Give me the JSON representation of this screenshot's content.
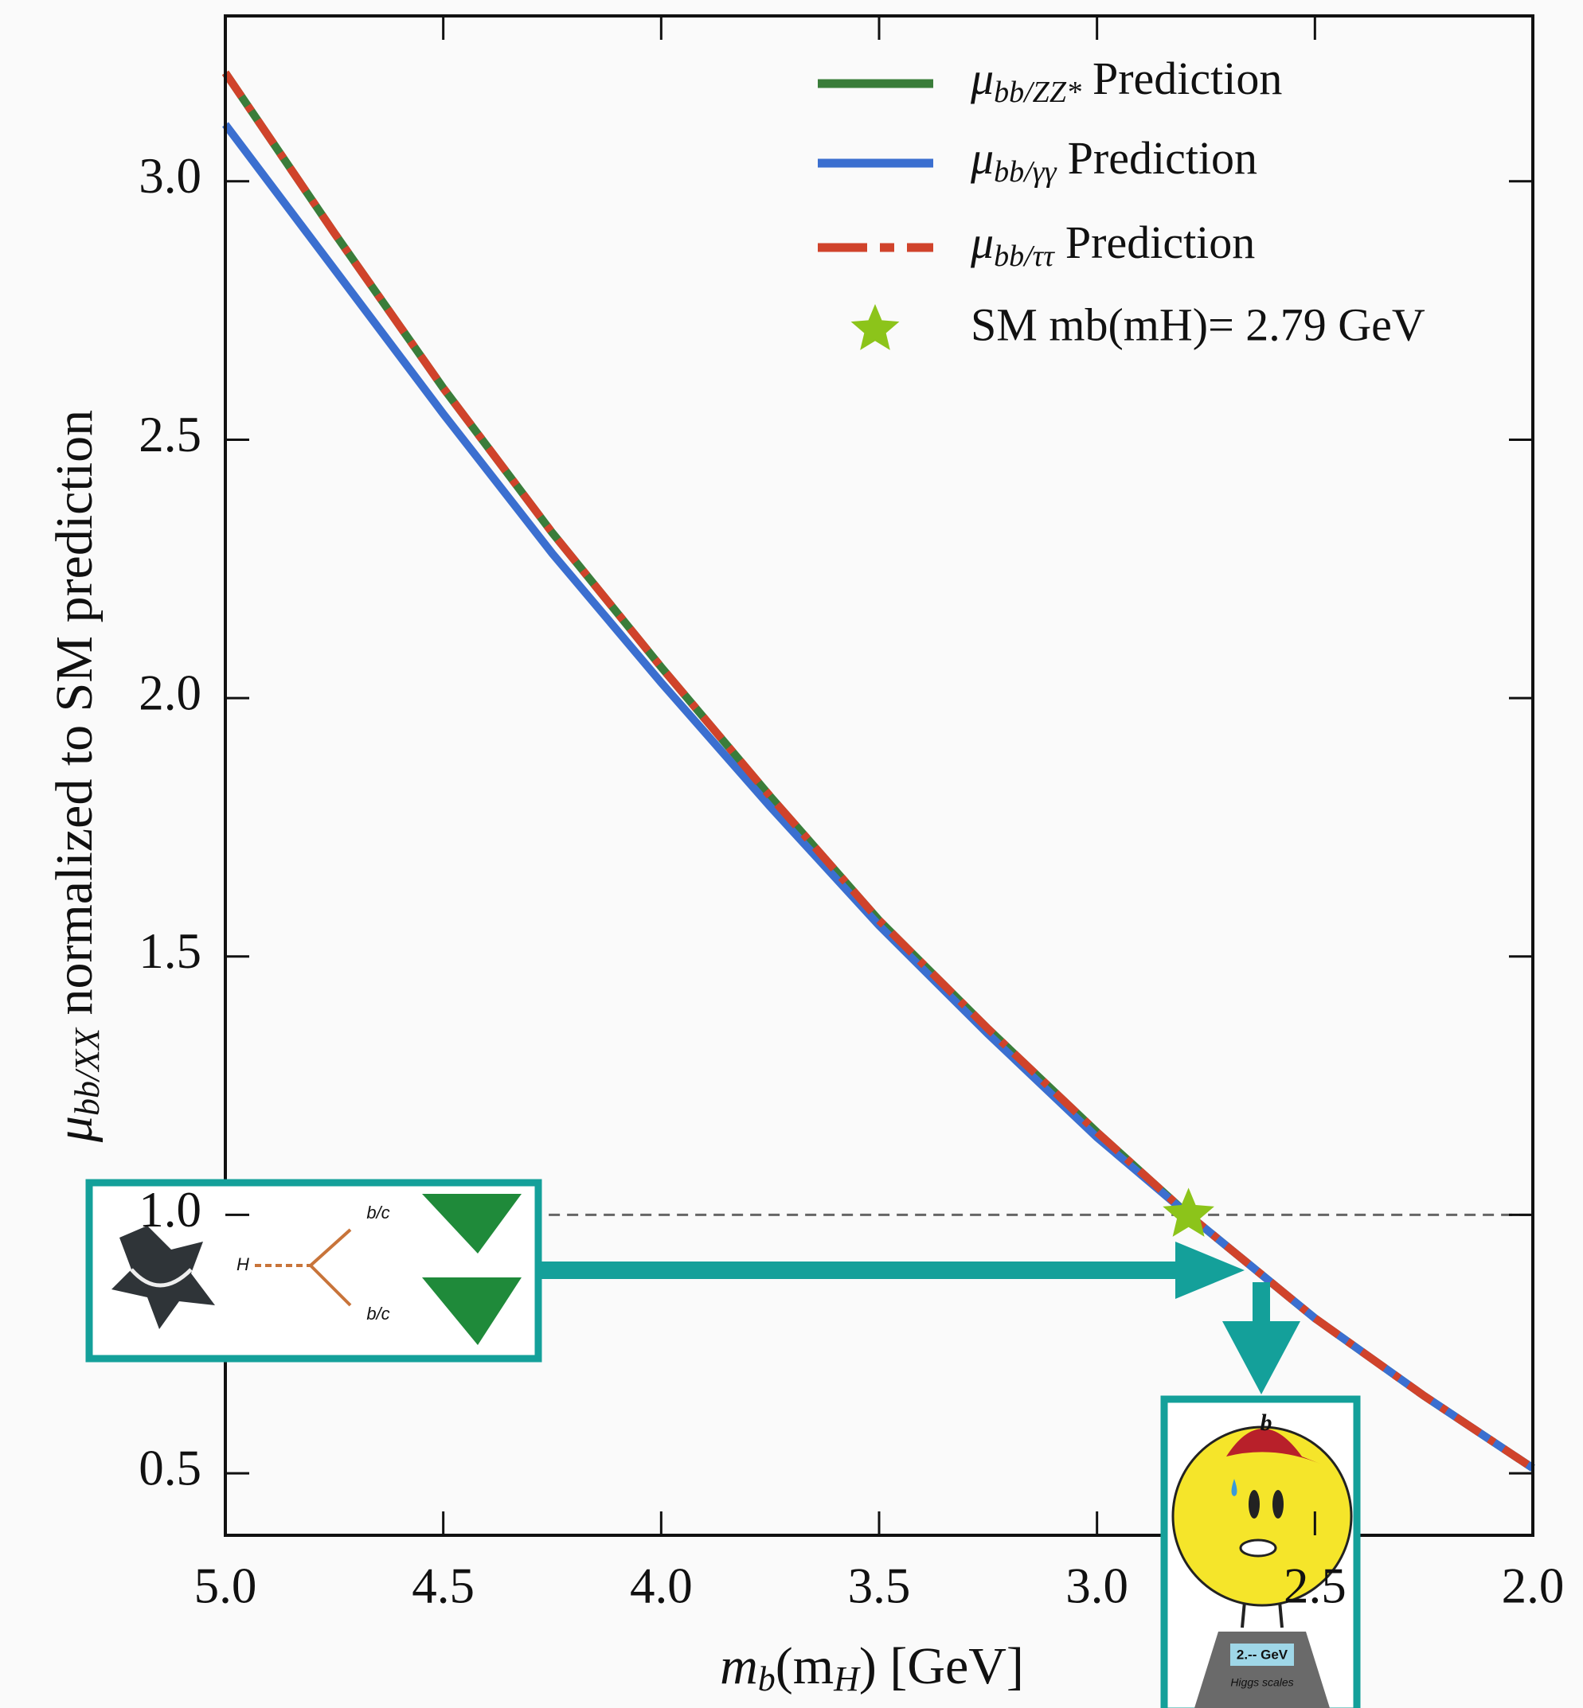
{
  "chart_data": {
    "type": "line",
    "x": [
      5.0,
      4.75,
      4.5,
      4.25,
      4.0,
      3.75,
      3.5,
      3.25,
      3.0,
      2.79,
      2.5,
      2.25,
      2.0
    ],
    "series": [
      {
        "name": {
          "symbol": "μ",
          "subscript": "bb/ZZ*",
          "text": "Prediction"
        },
        "color": "#3a7d3a",
        "linestyle": "solid",
        "values": [
          3.21,
          2.9,
          2.6,
          2.32,
          2.06,
          1.81,
          1.57,
          1.36,
          1.16,
          1.0,
          0.8,
          0.65,
          0.51
        ]
      },
      {
        "name": {
          "symbol": "μ",
          "subscript": "bb/γγ",
          "text": "Prediction"
        },
        "color": "#3b6fd0",
        "linestyle": "solid",
        "values": [
          3.11,
          2.83,
          2.55,
          2.28,
          2.03,
          1.79,
          1.56,
          1.35,
          1.15,
          1.0,
          0.8,
          0.65,
          0.51
        ]
      },
      {
        "name": {
          "symbol": "μ",
          "subscript": "bb/ττ",
          "text": "Prediction"
        },
        "color": "#d0432b",
        "linestyle": "dashdot",
        "values": [
          3.21,
          2.9,
          2.6,
          2.32,
          2.06,
          1.81,
          1.57,
          1.36,
          1.16,
          1.0,
          0.8,
          0.65,
          0.51
        ]
      }
    ],
    "marker": {
      "name": "SM mb(mH)= 2.79 GeV",
      "x": 2.79,
      "y": 1.0,
      "color": "#8cc41a"
    },
    "hline": 1.0,
    "xlabel": {
      "m": "m",
      "sub": "b",
      "mid": "(m",
      "sub2": "H",
      "end": ") [GeV]"
    },
    "ylabel": {
      "symbol": "μ",
      "subscript": "bb/XX",
      "text": " normalized to SM prediction"
    },
    "xlim": [
      5.0,
      2.0
    ],
    "ylim": [
      0.38,
      3.32
    ],
    "xticks": [
      {
        "value": 5,
        "label": "5.0"
      },
      4.5,
      {
        "value": 4,
        "label": "4.0"
      },
      3.5,
      {
        "value": 3,
        "label": "3.0"
      },
      2.5,
      {
        "value": 2,
        "label": "2.0"
      }
    ],
    "yticks": [
      0.5,
      {
        "value": 1,
        "label": "1.0"
      },
      1.5,
      {
        "value": 2,
        "label": "2.0"
      },
      2.5,
      {
        "value": 3,
        "label": "3.0"
      }
    ],
    "legend": "upper right"
  },
  "inset": {
    "decay_labels": [
      "H",
      "b/c",
      "b/c"
    ],
    "cap_letter": "b",
    "scale_readout": "2.-- GeV",
    "scale_brand": "Higgs scales"
  }
}
